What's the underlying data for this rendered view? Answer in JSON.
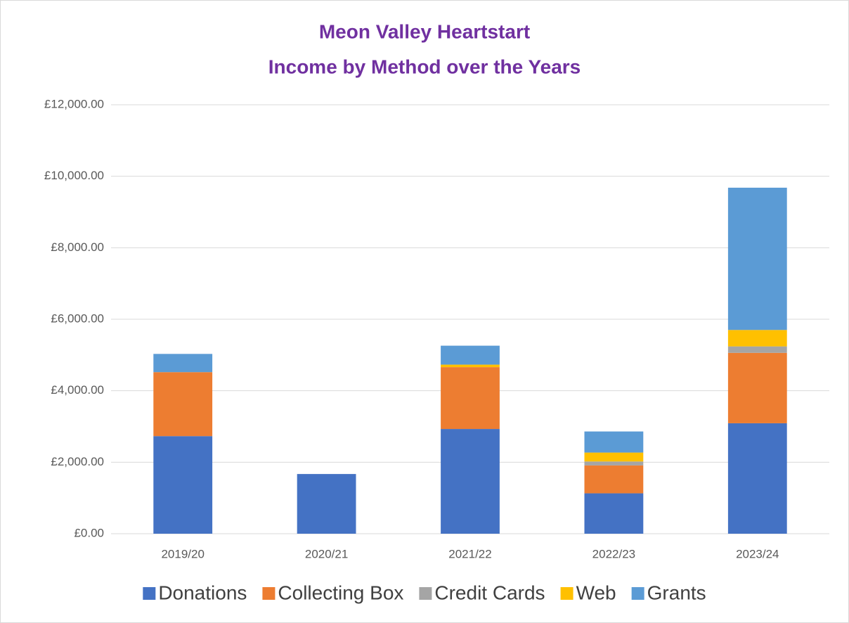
{
  "chart_data": {
    "type": "bar",
    "stacked": true,
    "title": [
      "Meon Valley Heartstart",
      "Income by Method over the Years"
    ],
    "categories": [
      "2019/20",
      "2020/21",
      "2021/22",
      "2022/23",
      "2023/24"
    ],
    "series": [
      {
        "name": "Donations",
        "color": "#4472c4",
        "values": [
          2730,
          1670,
          2930,
          1130,
          3090
        ]
      },
      {
        "name": "Collecting Box",
        "color": "#ed7d31",
        "values": [
          1790,
          0,
          1730,
          780,
          1970
        ]
      },
      {
        "name": "Credit Cards",
        "color": "#a5a5a5",
        "values": [
          0,
          0,
          0,
          110,
          180
        ]
      },
      {
        "name": "Web",
        "color": "#ffc000",
        "values": [
          0,
          0,
          70,
          250,
          460
        ]
      },
      {
        "name": "Grants",
        "color": "#5b9bd5",
        "values": [
          510,
          0,
          530,
          590,
          3980
        ]
      }
    ],
    "ylim": [
      0,
      12000
    ],
    "yticks": [
      {
        "value": 0,
        "label": "£0.00"
      },
      {
        "value": 2000,
        "label": "£2,000.00"
      },
      {
        "value": 4000,
        "label": "£4,000.00"
      },
      {
        "value": 6000,
        "label": "£6,000.00"
      },
      {
        "value": 8000,
        "label": "£8,000.00"
      },
      {
        "value": 10000,
        "label": "£10,000.00"
      },
      {
        "value": 12000,
        "label": "£12,000.00"
      }
    ],
    "grid": true,
    "legend": "bottom"
  }
}
